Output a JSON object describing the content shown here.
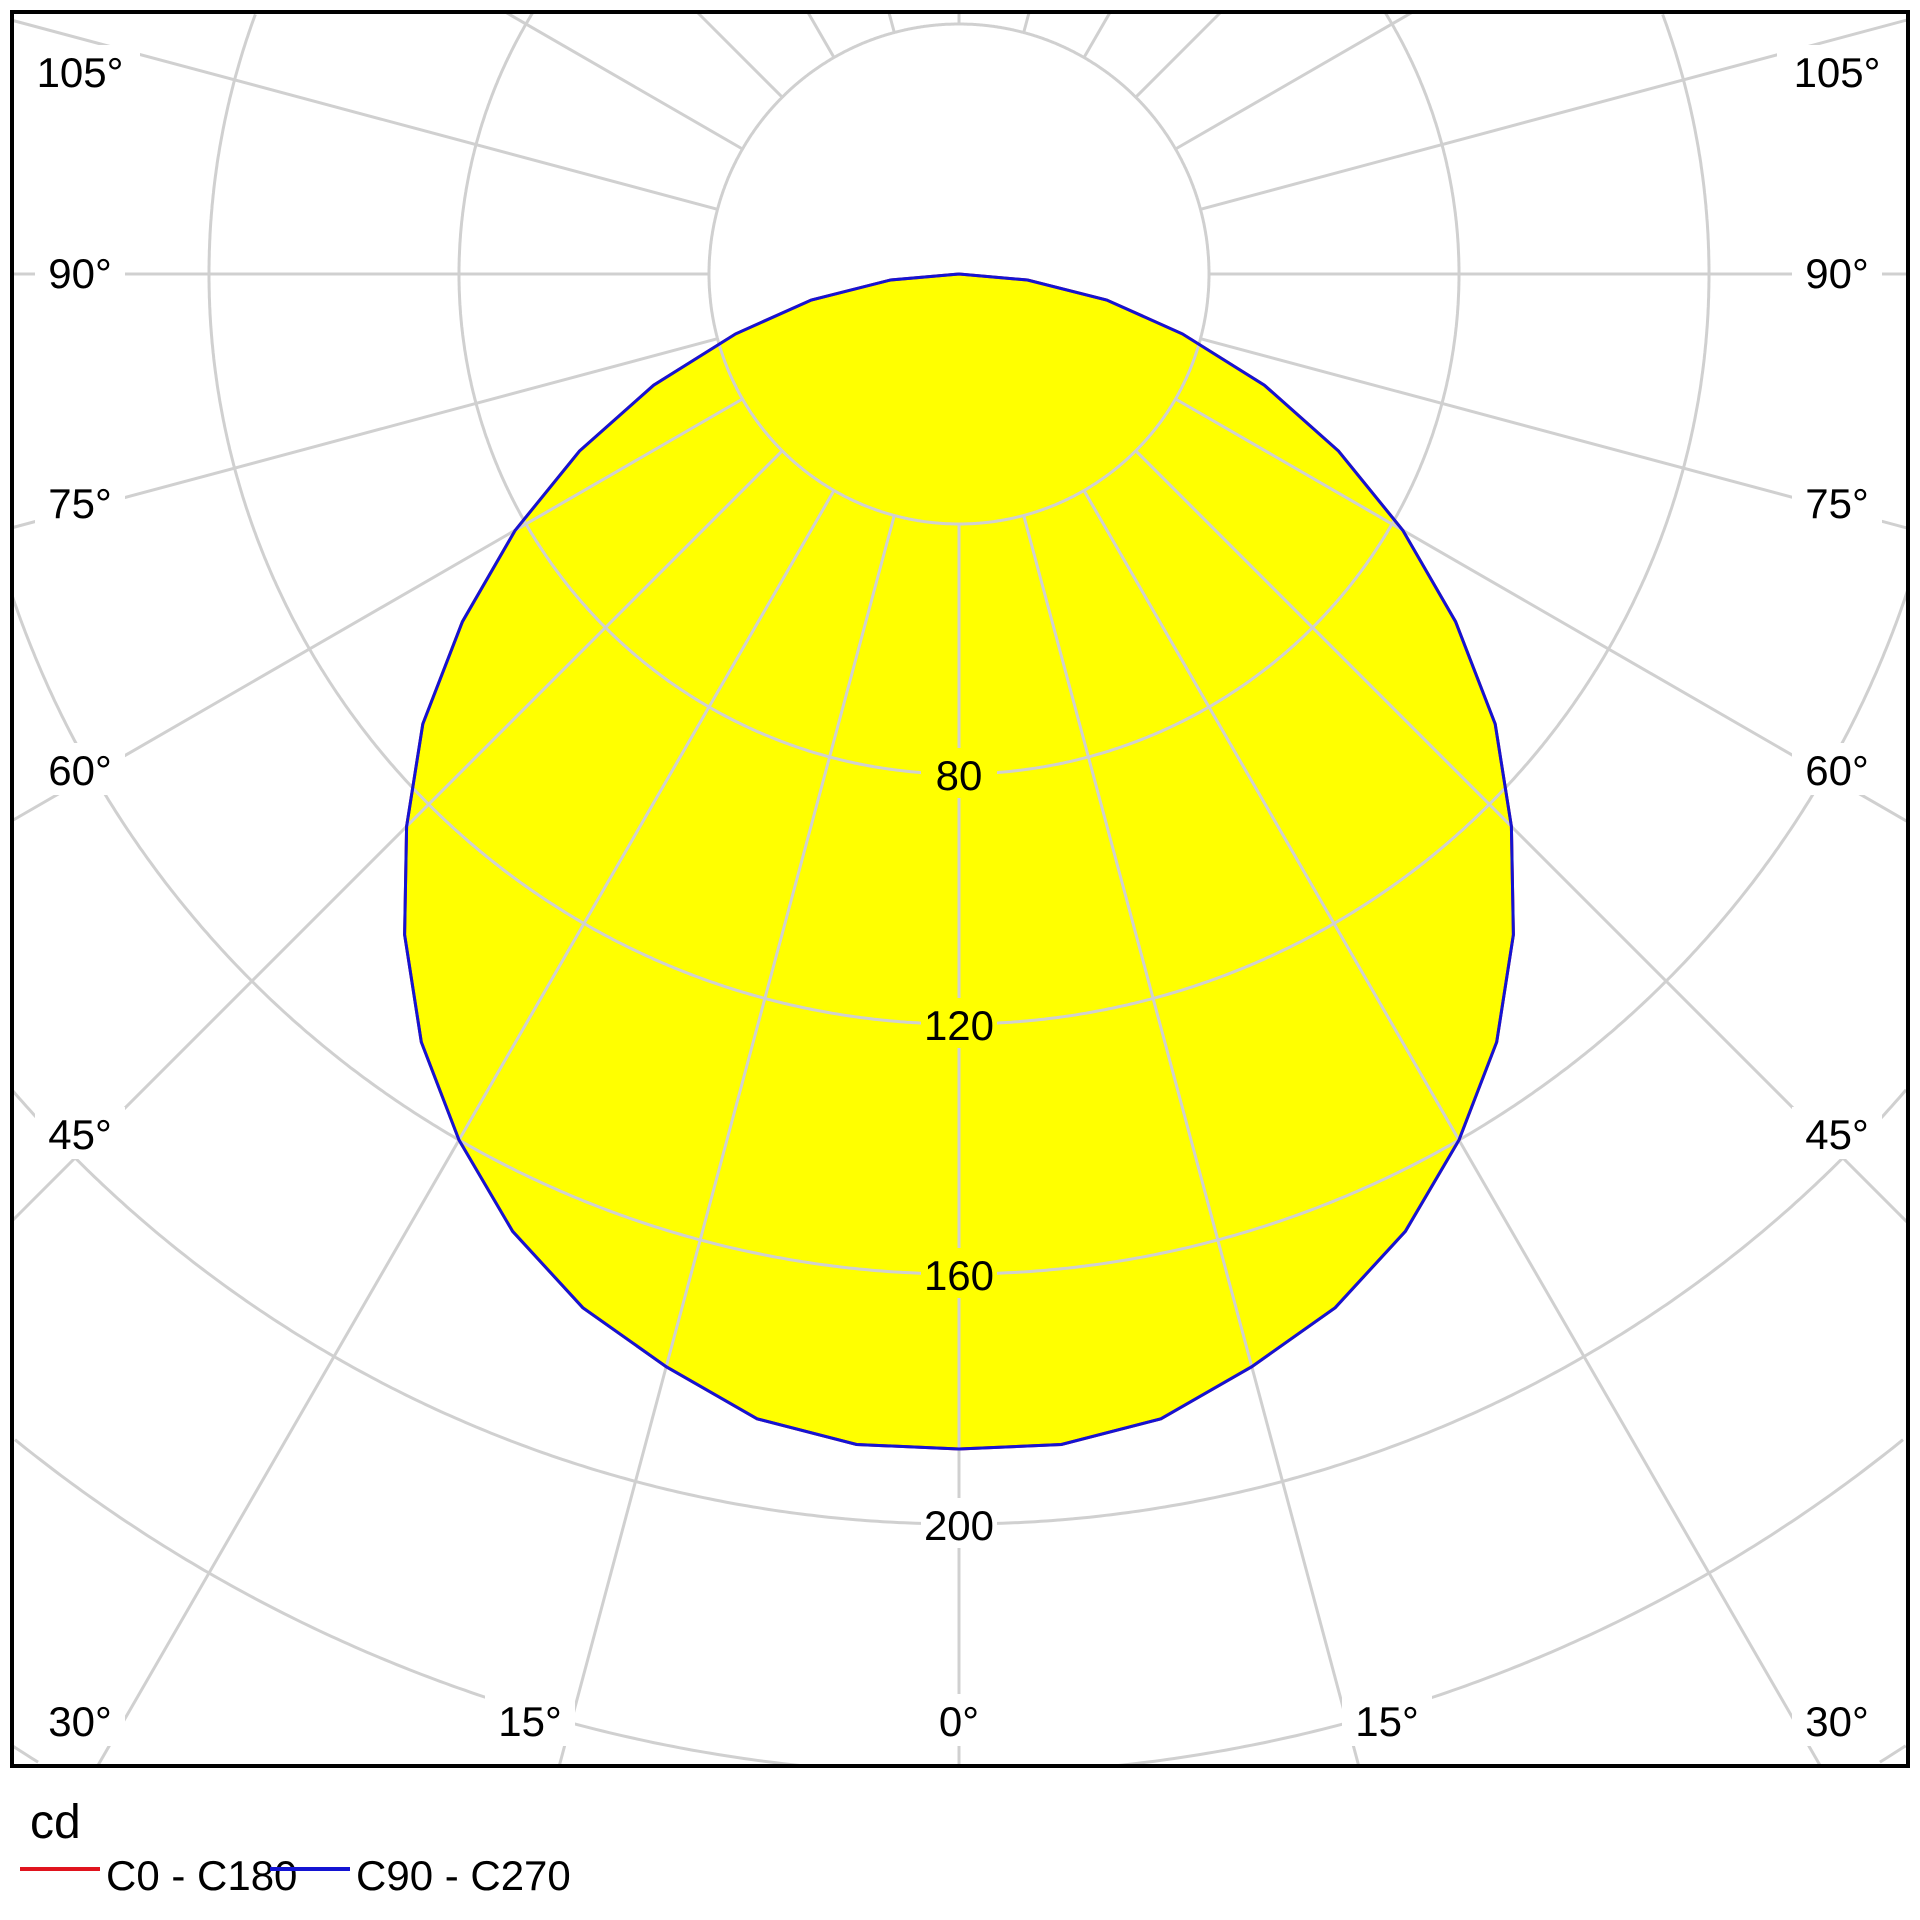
{
  "chart_data": {
    "type": "polar",
    "title": "",
    "unit_label": "cd",
    "radial_axis": {
      "ticks": [
        40,
        80,
        120,
        160,
        200,
        240,
        280,
        320
      ],
      "tick_labels": [
        "80",
        "120",
        "160",
        "200"
      ],
      "range": [
        0,
        320
      ]
    },
    "angular_axis": {
      "step_deg": 15,
      "left_labels": [
        "105°",
        "90°",
        "75°",
        "60°",
        "45°"
      ],
      "bottom_labels": [
        "30°",
        "15°",
        "0°",
        "15°",
        "30°"
      ],
      "right_labels": [
        "105°",
        "90°",
        "75°",
        "60°",
        "45°"
      ]
    },
    "grid": true,
    "legend": "bottom-left",
    "fill_color": "#ffff00",
    "grid_color": "#d0d0d0",
    "angles_deg": [
      0,
      5,
      10,
      15,
      20,
      25,
      30,
      35,
      40,
      45,
      50,
      55,
      60,
      65,
      70,
      75,
      80,
      85,
      90
    ],
    "series": [
      {
        "name": "C0 - C180",
        "color": "#e0141e",
        "values": [
          188,
          188,
          186,
          181,
          176,
          169,
          160,
          150,
          138,
          125,
          112,
          97,
          82,
          67,
          52,
          37,
          24,
          11,
          0
        ]
      },
      {
        "name": "C90 - C270",
        "color": "#1414d2",
        "values": [
          188,
          188,
          186,
          181,
          176,
          169,
          160,
          150,
          138,
          125,
          112,
          97,
          82,
          67,
          52,
          37,
          24,
          11,
          0
        ]
      }
    ]
  }
}
